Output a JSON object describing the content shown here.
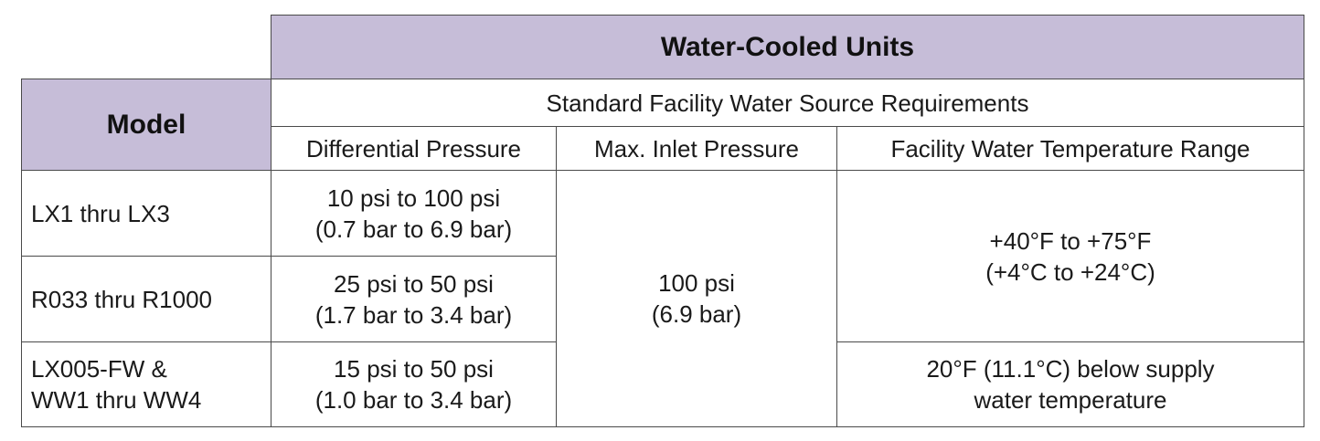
{
  "table": {
    "title": "Water-Cooled Units",
    "model_header": "Model",
    "subtitle": "Standard Facility Water Source Requirements",
    "columns": [
      "Differential Pressure",
      "Max. Inlet Pressure",
      "Facility Water Temperature Range"
    ],
    "rows": [
      {
        "model": [
          "LX1 thru LX3"
        ],
        "differential_pressure": [
          "10 psi to 100 psi",
          "(0.7 bar to 6.9 bar)"
        ]
      },
      {
        "model": [
          "R033 thru R1000"
        ],
        "differential_pressure": [
          "25 psi to 50 psi",
          "(1.7 bar to 3.4 bar)"
        ]
      },
      {
        "model": [
          "LX005-FW &",
          "WW1 thru WW4"
        ],
        "differential_pressure": [
          "15 psi to 50 psi",
          "(1.0 bar to 3.4 bar)"
        ]
      }
    ],
    "max_inlet_pressure": [
      "100 psi",
      "(6.9 bar)"
    ],
    "temperature_range": [
      [
        "+40°F to +75°F",
        "(+4°C to +24°C)"
      ],
      [
        "20°F (11.1°C) below supply",
        "water temperature"
      ]
    ]
  }
}
